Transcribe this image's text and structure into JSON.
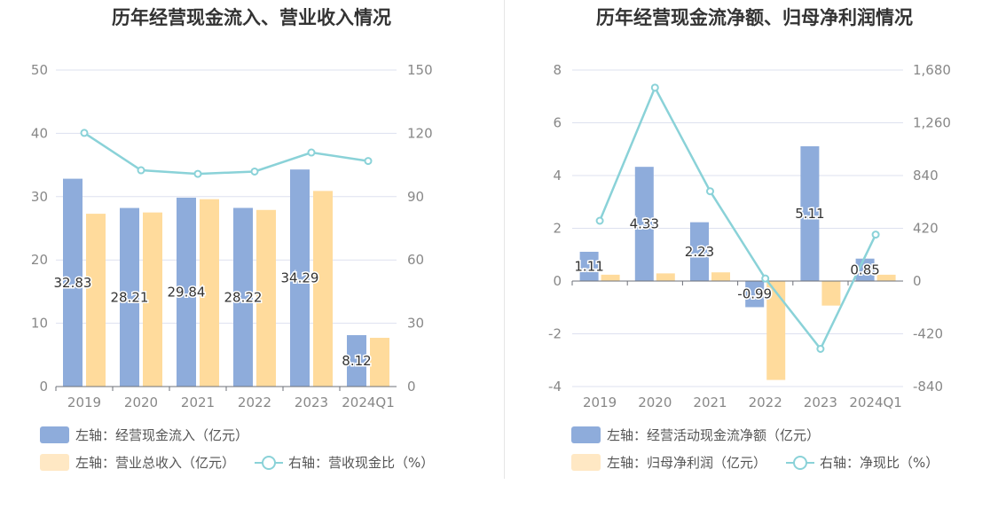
{
  "colors": {
    "blue": "#8eacdb",
    "orange": "#ffdb9c",
    "line": "#8ad2d8",
    "axis": "#888888",
    "grid": "#dde1ef"
  },
  "chart_data": [
    {
      "type": "bar",
      "title": "历年经营现金流入、营业收入情况",
      "categories": [
        "2019",
        "2020",
        "2021",
        "2022",
        "2023",
        "2024Q1"
      ],
      "left_axis": {
        "ylim": [
          0,
          50
        ],
        "ticks": [
          "0",
          "10",
          "20",
          "30",
          "40",
          "50"
        ]
      },
      "right_axis": {
        "ylim": [
          0,
          150
        ],
        "ticks": [
          "0",
          "30",
          "60",
          "90",
          "120",
          "150"
        ]
      },
      "series": [
        {
          "name": "左轴：经营现金流入（亿元）",
          "kind": "bar",
          "axis": "left",
          "color": "#8eacdb",
          "values": [
            32.83,
            28.21,
            29.84,
            28.22,
            34.29,
            8.12
          ],
          "labels": [
            "32.83",
            "28.21",
            "29.84",
            "28.22",
            "34.29",
            "8.12"
          ]
        },
        {
          "name": "左轴：营业总收入（亿元）",
          "kind": "bar",
          "axis": "left",
          "color": "#ffdb9c",
          "values": [
            27.3,
            27.5,
            29.6,
            27.9,
            30.9,
            7.7
          ]
        },
        {
          "name": "右轴：营收现金比（%）",
          "kind": "line",
          "axis": "right",
          "color": "#8ad2d8",
          "values": [
            120.2,
            102.5,
            100.8,
            101.9,
            110.9,
            106.9
          ]
        }
      ],
      "legend": {
        "position": "bottom-left"
      },
      "grid": true
    },
    {
      "type": "bar",
      "title": "历年经营现金流净额、归母净利润情况",
      "categories": [
        "2019",
        "2020",
        "2021",
        "2022",
        "2023",
        "2024Q1"
      ],
      "left_axis": {
        "ylim": [
          -4,
          8
        ],
        "ticks": [
          "-4",
          "-2",
          "0",
          "2",
          "4",
          "6",
          "8"
        ]
      },
      "right_axis": {
        "ylim": [
          -840,
          1680
        ],
        "ticks": [
          "-840",
          "-420",
          "0",
          "420",
          "840",
          "1,260",
          "1,680"
        ]
      },
      "series": [
        {
          "name": "左轴：经营活动现金流净额（亿元）",
          "kind": "bar",
          "axis": "left",
          "color": "#8eacdb",
          "values": [
            1.11,
            4.33,
            2.23,
            -0.99,
            5.11,
            0.85
          ],
          "labels": [
            "1.11",
            "4.33",
            "2.23",
            "-0.99",
            "5.11",
            "0.85"
          ]
        },
        {
          "name": "左轴：归母净利润（亿元）",
          "kind": "bar",
          "axis": "left",
          "color": "#ffdb9c",
          "values": [
            0.24,
            0.29,
            0.33,
            -3.75,
            -0.93,
            0.24
          ]
        },
        {
          "name": "右轴：净现比（%）",
          "kind": "line",
          "axis": "right",
          "color": "#8ad2d8",
          "values": [
            480,
            1540,
            715,
            20,
            -540,
            370
          ]
        }
      ],
      "legend": {
        "position": "bottom-left"
      },
      "grid": true
    }
  ]
}
